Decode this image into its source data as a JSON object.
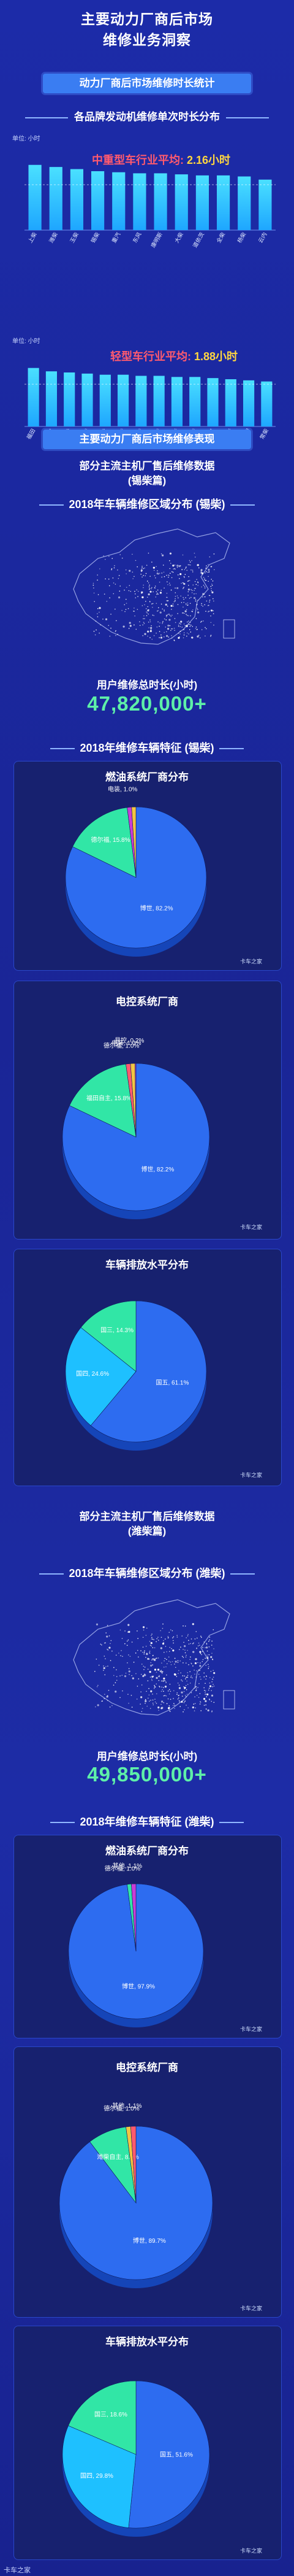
{
  "header": {
    "title_line1": "主要动力厂商后市场",
    "title_line2": "维修业务洞察"
  },
  "section1": {
    "title": "动力厂商后市场维修时长统计",
    "subtitle": "各品牌发动机维修单次时长分布"
  },
  "section2": {
    "title": "主要动力厂商后市场维修表现",
    "subtitle_line1": "部分主流主机厂售后维修数据",
    "subtitle_line2": "(锡柴篇)"
  },
  "weifang": {
    "subtitle_line1": "部分主流主机厂售后维修数据",
    "subtitle_line2": "(潍柴篇)"
  },
  "logo_text": "卡车之家",
  "footer": "卡车之家",
  "chart_data": [
    {
      "type": "bar",
      "unit": "单位: 小时",
      "average_label": "中重型车行业平均:",
      "average_value": "2.16小时",
      "average": 2.16,
      "categories": [
        "上柴",
        "潍柴",
        "玉柴",
        "锡柴",
        "重汽",
        "东风",
        "康明斯",
        "大柴",
        "道依茨",
        "全柴",
        "杨柴",
        "云内"
      ],
      "values": [
        3.1,
        3.0,
        2.9,
        2.8,
        2.75,
        2.7,
        2.7,
        2.65,
        2.6,
        2.6,
        2.55,
        2.4
      ],
      "ylim": [
        0,
        3.5
      ],
      "colors": [
        "#1ea6ff",
        "#4ae0ff"
      ]
    },
    {
      "type": "bar",
      "unit": "单位: 小时",
      "average_label": "轻型车行业平均:",
      "average_value": "1.88小时",
      "average": 1.88,
      "categories": [
        "福田",
        "云内",
        "江铃",
        "全柴",
        "五十铃",
        "锡柴",
        "玉柴",
        "潍柴",
        "朝柴",
        "新柴",
        "东风",
        "杨柴",
        "昆明",
        "常柴"
      ],
      "values": [
        2.6,
        2.45,
        2.4,
        2.35,
        2.3,
        2.3,
        2.25,
        2.25,
        2.2,
        2.2,
        2.15,
        2.1,
        2.05,
        2.0
      ],
      "ylim": [
        0,
        3.0
      ],
      "colors": [
        "#1ea6ff",
        "#4ae0ff"
      ]
    },
    {
      "type": "pie",
      "title": "燃油系统厂商分布",
      "labels": [
        "博世",
        "德尔福",
        "电装",
        "其他"
      ],
      "values": [
        82.2,
        15.8,
        1.0,
        1.0
      ],
      "label_text": [
        "博世, 82.2%",
        "德尔福, 15.8%",
        "电装, 1.0%",
        ""
      ],
      "colors": [
        "#2d6cf0",
        "#31e6a6",
        "#c93cd6",
        "#f2c542"
      ]
    },
    {
      "type": "pie",
      "title": "电控系统厂商",
      "labels": [
        "博世",
        "福田自主",
        "德尔福",
        "电装",
        "易控"
      ],
      "values": [
        82.2,
        15.8,
        1.0,
        1.0,
        0.2
      ],
      "label_text": [
        "博世, 82.2%",
        "福田自主, 15.8%",
        "德尔福, 1.0%",
        "电装, 1.0%",
        "易控, 0.2%"
      ],
      "colors": [
        "#2d6cf0",
        "#31e6a6",
        "#ff5a6e",
        "#f2c542",
        "#c93cd6"
      ]
    },
    {
      "type": "pie",
      "title": "车辆排放水平分布",
      "labels": [
        "国五",
        "国四",
        "国三"
      ],
      "values": [
        61.1,
        24.6,
        14.3
      ],
      "label_text": [
        "国五, 61.1%",
        "国四, 24.6%",
        "国三, 14.3%"
      ],
      "colors": [
        "#2d6cf0",
        "#1ec0ff",
        "#31e6a6"
      ]
    },
    {
      "type": "pie",
      "title": "燃油系统厂商分布",
      "labels": [
        "博世",
        "德尔福",
        "其他"
      ],
      "values": [
        97.9,
        1.0,
        1.1
      ],
      "label_text": [
        "博世, 97.9%",
        "德尔福, 1.0%",
        "其他, 1.1%"
      ],
      "colors": [
        "#2d6cf0",
        "#31e6a6",
        "#c93cd6"
      ]
    },
    {
      "type": "pie",
      "title": "电控系统厂商",
      "labels": [
        "博世",
        "潍柴自主",
        "德尔福",
        "其他"
      ],
      "values": [
        89.7,
        8.2,
        1.0,
        1.1
      ],
      "label_text": [
        "博世, 89.7%",
        "潍柴自主, 8.2%",
        "德尔福, 1.0%",
        "其他, 1.1%"
      ],
      "colors": [
        "#2d6cf0",
        "#31e6a6",
        "#f2c542",
        "#ff5a6e"
      ]
    },
    {
      "type": "pie",
      "title": "车辆排放水平分布",
      "labels": [
        "国五",
        "国四",
        "国三"
      ],
      "values": [
        51.6,
        29.8,
        18.6
      ],
      "label_text": [
        "国五, 51.6%",
        "国四, 29.8%",
        "国三, 18.6%"
      ],
      "colors": [
        "#2d6cf0",
        "#1ec0ff",
        "#31e6a6"
      ]
    }
  ],
  "xichai": {
    "map_title": "2018年车辆维修区域分布 (锡柴)",
    "hours_caption": "用户维修总时长(小时)",
    "hours_value": "47,820,000+",
    "feature_title": "2018年维修车辆特征 (锡柴)"
  },
  "weichai": {
    "map_title": "2018年车辆维修区域分布 (潍柴)",
    "hours_caption": "用户维修总时长(小时)",
    "hours_value": "49,850,000+",
    "feature_title": "2018年维修车辆特征 (潍柴)"
  }
}
